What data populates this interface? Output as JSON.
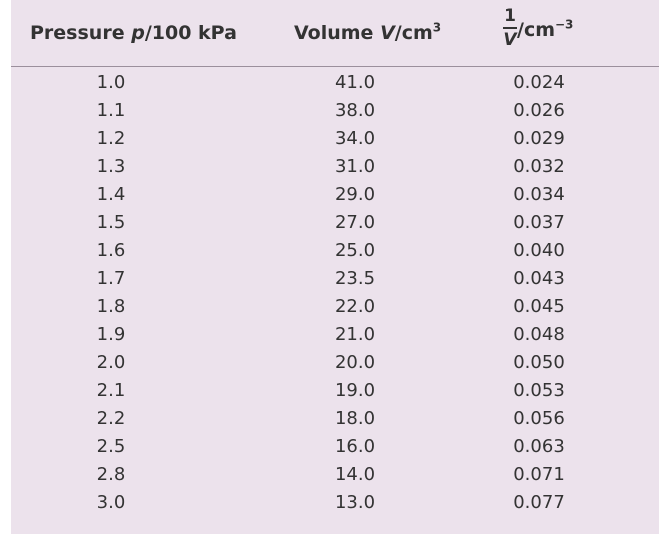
{
  "table": {
    "headers": {
      "pressure_prefix": "Pressure ",
      "pressure_symbol": "p",
      "pressure_unit": "/100 kPa",
      "volume_prefix": "Volume ",
      "volume_symbol": "V",
      "volume_unit": "/cm",
      "volume_exp": "3",
      "inv_num": "1",
      "inv_den": "V",
      "inv_unit": "/cm",
      "inv_exp": "−3"
    },
    "rows": [
      {
        "pressure": "1.0",
        "volume": "41.0",
        "inverse": "0.024"
      },
      {
        "pressure": "1.1",
        "volume": "38.0",
        "inverse": "0.026"
      },
      {
        "pressure": "1.2",
        "volume": "34.0",
        "inverse": "0.029"
      },
      {
        "pressure": "1.3",
        "volume": "31.0",
        "inverse": "0.032"
      },
      {
        "pressure": "1.4",
        "volume": "29.0",
        "inverse": "0.034"
      },
      {
        "pressure": "1.5",
        "volume": "27.0",
        "inverse": "0.037"
      },
      {
        "pressure": "1.6",
        "volume": "25.0",
        "inverse": "0.040"
      },
      {
        "pressure": "1.7",
        "volume": "23.5",
        "inverse": "0.043"
      },
      {
        "pressure": "1.8",
        "volume": "22.0",
        "inverse": "0.045"
      },
      {
        "pressure": "1.9",
        "volume": "21.0",
        "inverse": "0.048"
      },
      {
        "pressure": "2.0",
        "volume": "20.0",
        "inverse": "0.050"
      },
      {
        "pressure": "2.1",
        "volume": "19.0",
        "inverse": "0.053"
      },
      {
        "pressure": "2.2",
        "volume": "18.0",
        "inverse": "0.056"
      },
      {
        "pressure": "2.5",
        "volume": "16.0",
        "inverse": "0.063"
      },
      {
        "pressure": "2.8",
        "volume": "14.0",
        "inverse": "0.071"
      },
      {
        "pressure": "3.0",
        "volume": "13.0",
        "inverse": "0.077"
      }
    ]
  },
  "colors": {
    "panel_background": "#ece2ec",
    "rule": "#9b8f9c",
    "text": "#333333"
  }
}
